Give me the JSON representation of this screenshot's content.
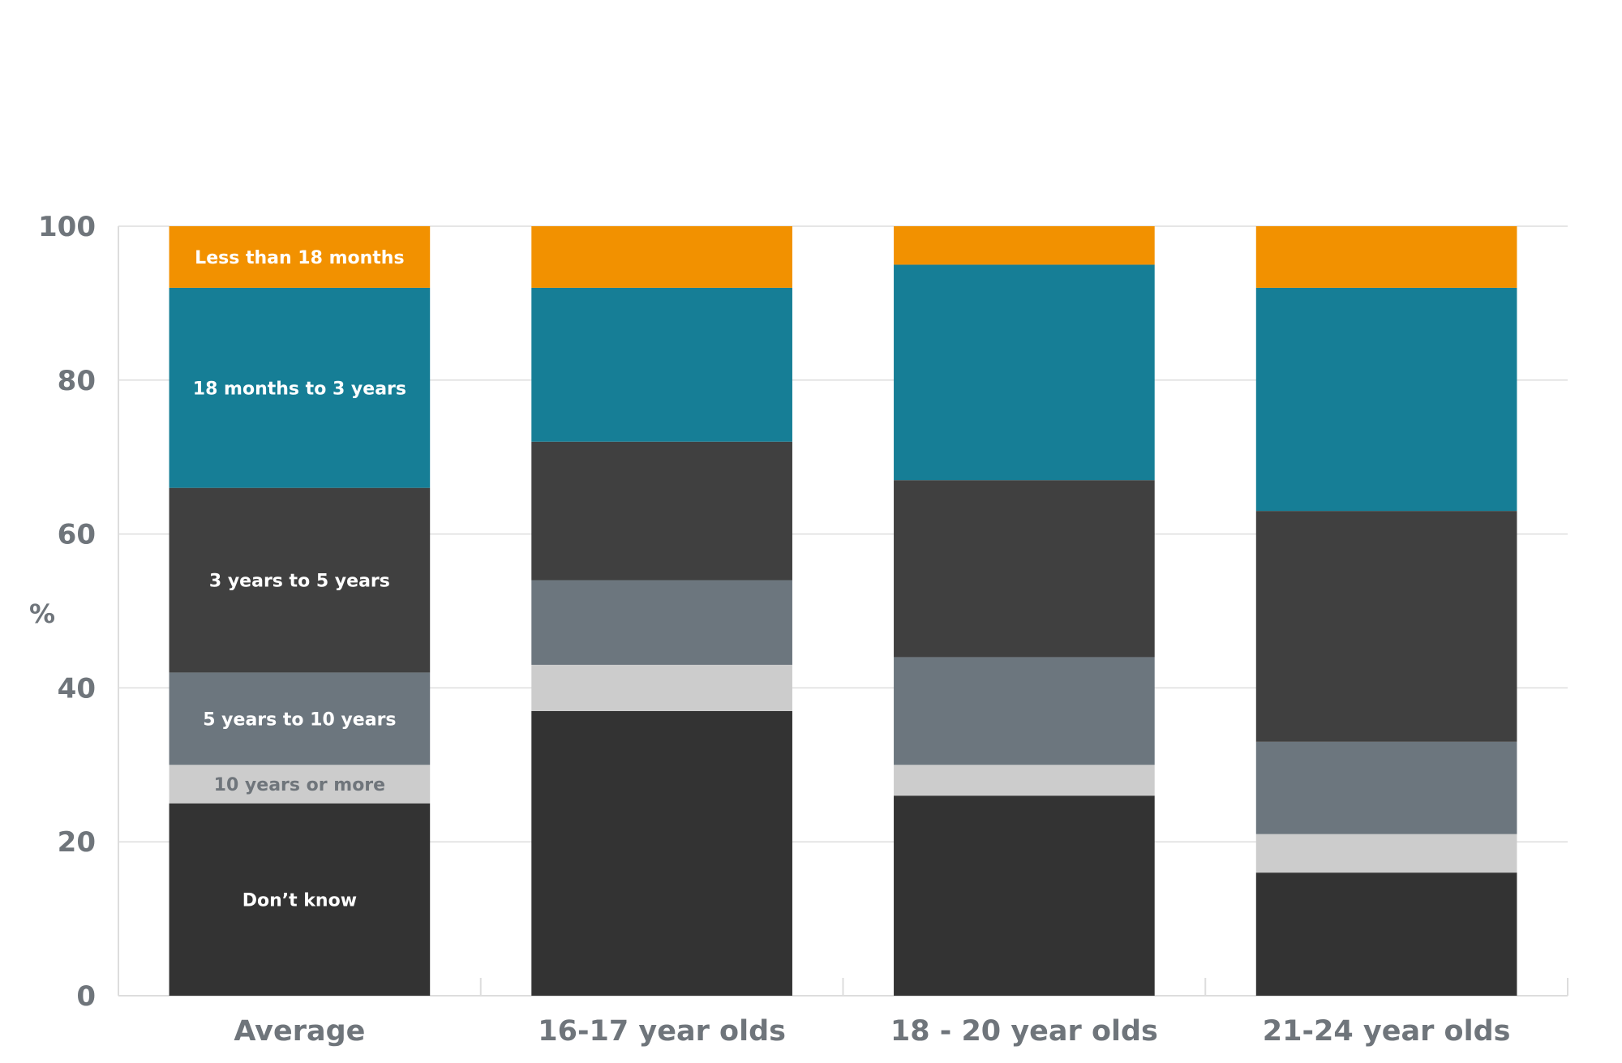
{
  "chart_data": {
    "type": "bar",
    "stacked": true,
    "title": "",
    "xlabel": "",
    "ylabel": "%",
    "ylim": [
      0,
      100
    ],
    "yticks": [
      0,
      20,
      40,
      60,
      80,
      100
    ],
    "grid": true,
    "categories": [
      "Average",
      "16-17 year olds",
      "18 - 20 year olds",
      "21-24 year olds"
    ],
    "series": [
      {
        "name": "Don’t know",
        "color": "#333333",
        "label_color": "#ffffff",
        "values": [
          25,
          37,
          26,
          16
        ]
      },
      {
        "name": "10 years or more",
        "color": "#cccccc",
        "label_color": "#6f757b",
        "values": [
          5,
          6,
          4,
          5
        ]
      },
      {
        "name": "5 years to 10 years",
        "color": "#6c767e",
        "label_color": "#ffffff",
        "values": [
          12,
          11,
          14,
          12
        ]
      },
      {
        "name": "3 years to 5 years",
        "color": "#404040",
        "label_color": "#ffffff",
        "values": [
          24,
          18,
          23,
          30
        ]
      },
      {
        "name": "18 months to 3 years",
        "color": "#167e96",
        "label_color": "#ffffff",
        "values": [
          26,
          20,
          28,
          29
        ]
      },
      {
        "name": "Less than 18 months",
        "color": "#f29100",
        "label_color": "#ffffff",
        "values": [
          8,
          8,
          5,
          8
        ]
      }
    ],
    "series_labels_shown_on_bar": 0,
    "colors": {
      "axis_text": "#6f757b",
      "grid": "#dddddd",
      "background": "#ffffff"
    }
  }
}
